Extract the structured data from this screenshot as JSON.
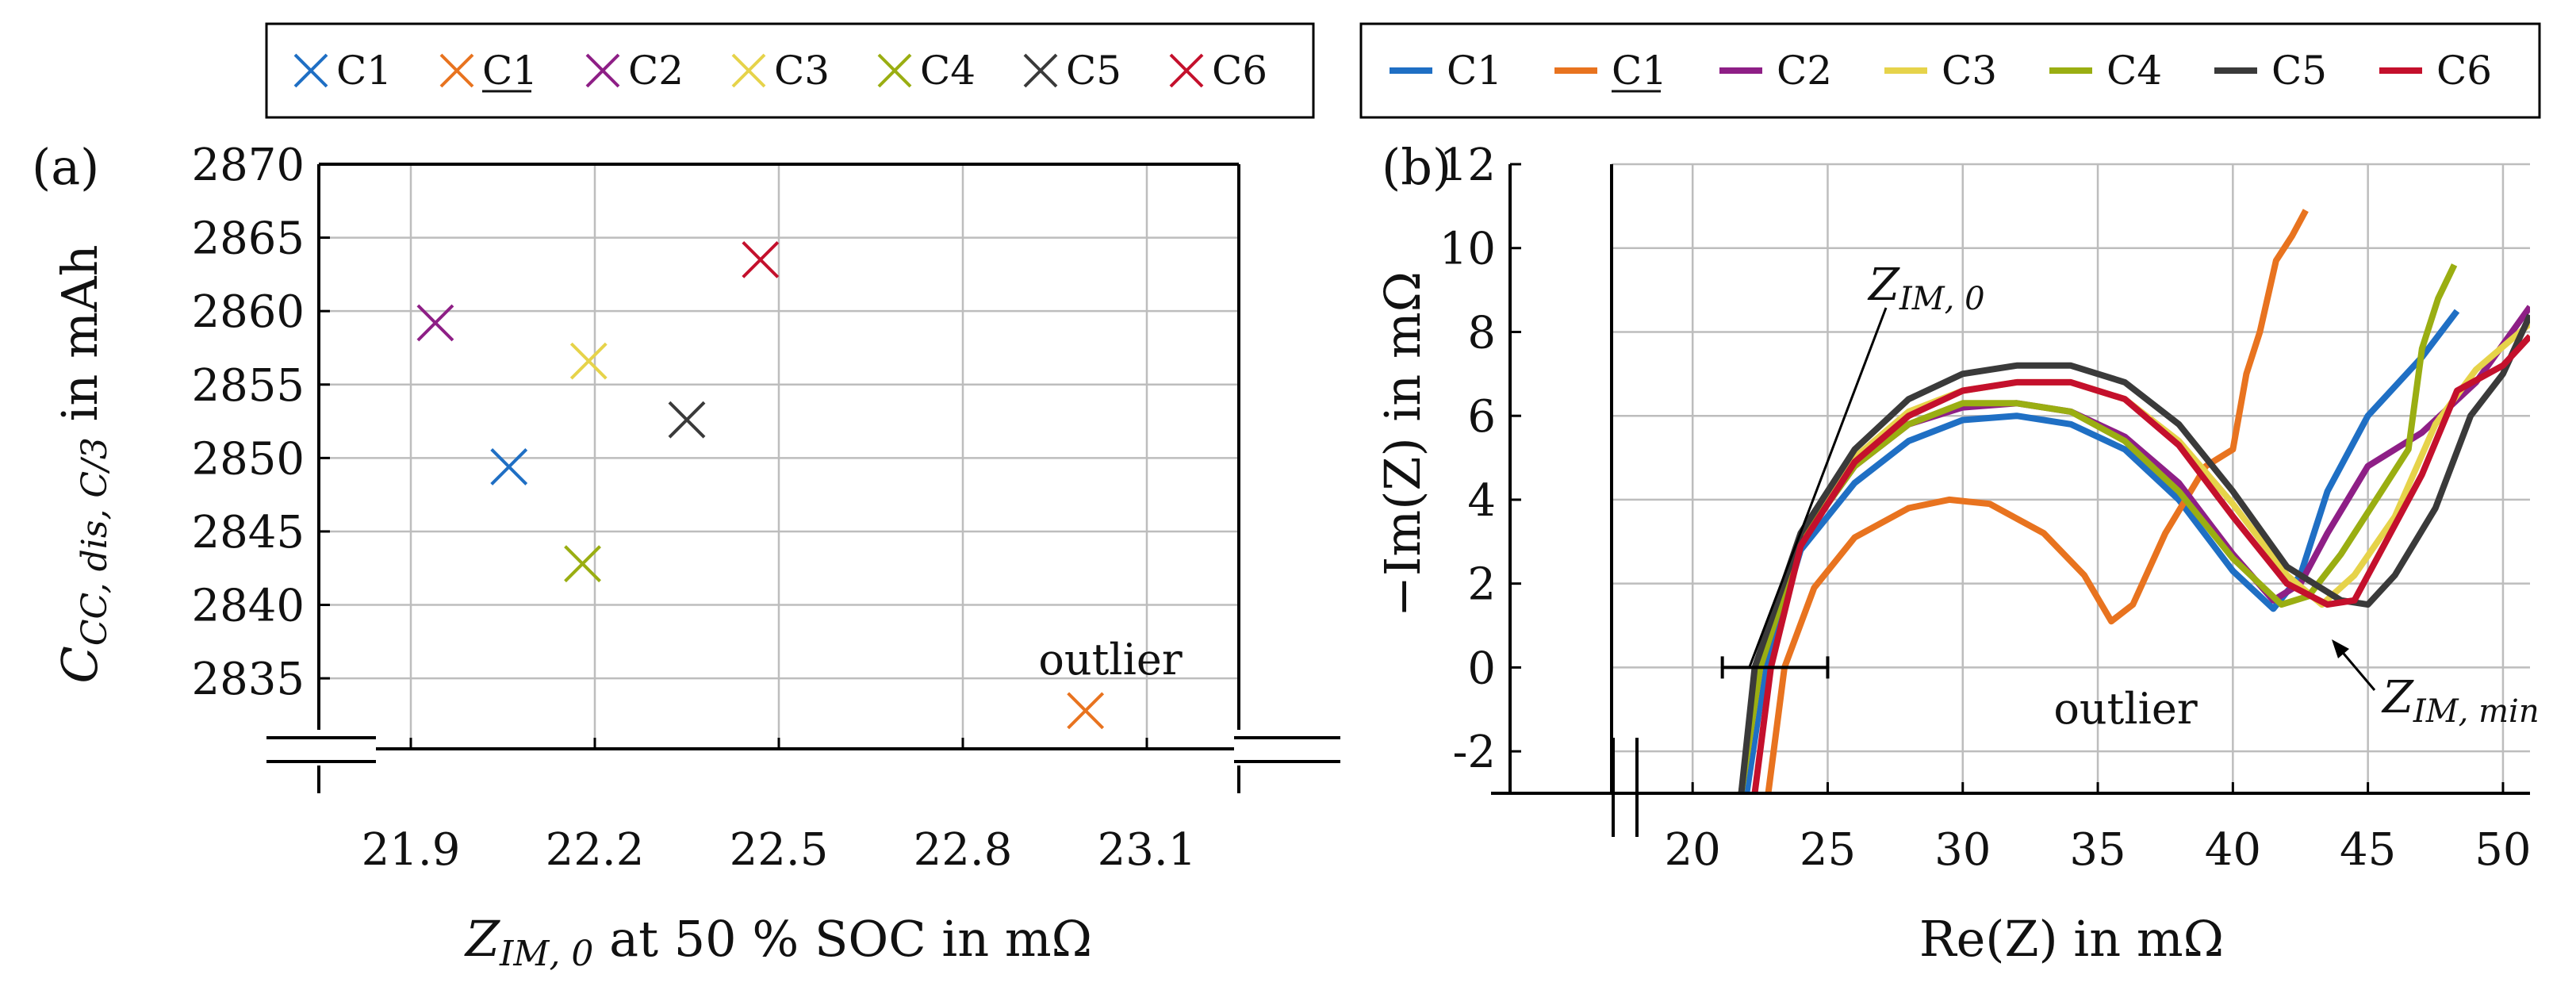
{
  "colors": {
    "C1": "#1f6fc4",
    "C1u": "#e8731f",
    "C2": "#8e1f86",
    "C3": "#e6d34a",
    "C4": "#9aae12",
    "C5": "#3a3a3a",
    "C6": "#c4102c",
    "axis": "#000000",
    "grid": "#bdbdbd"
  },
  "chart_data": [
    {
      "type": "scatter",
      "panel_label": "(a)",
      "legend": [
        "C1",
        "C1",
        "C2",
        "C3",
        "C4",
        "C5",
        "C6"
      ],
      "legend_underlined": [
        false,
        true,
        false,
        false,
        false,
        false,
        false
      ],
      "xlabel_main": "Z",
      "xlabel_sub": "IM, 0",
      "xlabel_rest": " at 50 % SOC in mΩ",
      "ylabel_main": "C",
      "ylabel_sub": "CC, dis, C/3",
      "ylabel_rest": " in mAh",
      "xticks": [
        21.9,
        22.2,
        22.5,
        22.8,
        23.1
      ],
      "xtick_labels": [
        "21.9",
        "22.2",
        "22.5",
        "22.8",
        "23.1"
      ],
      "yticks": [
        2835,
        2840,
        2845,
        2850,
        2855,
        2860,
        2865,
        2870
      ],
      "ytick_labels": [
        "2835",
        "2840",
        "2845",
        "2850",
        "2855",
        "2860",
        "2865",
        "2870"
      ],
      "xlim": [
        21.75,
        23.25
      ],
      "ylim": [
        2830.2,
        2870
      ],
      "points": [
        {
          "name": "C1",
          "x": 22.06,
          "y": 2849.4
        },
        {
          "name": "C1 (underlined)",
          "x": 23.0,
          "y": 2832.8
        },
        {
          "name": "C2",
          "x": 21.94,
          "y": 2859.2
        },
        {
          "name": "C3",
          "x": 22.19,
          "y": 2856.6
        },
        {
          "name": "C4",
          "x": 22.18,
          "y": 2842.8
        },
        {
          "name": "C5",
          "x": 22.35,
          "y": 2852.6
        },
        {
          "name": "C6",
          "x": 22.47,
          "y": 2863.5
        }
      ],
      "annotation": "outlier"
    },
    {
      "type": "line",
      "panel_label": "(b)",
      "legend": [
        "C1",
        "C1",
        "C2",
        "C3",
        "C4",
        "C5",
        "C6"
      ],
      "legend_underlined": [
        false,
        true,
        false,
        false,
        false,
        false,
        false
      ],
      "xlabel": "Re(Z) in mΩ",
      "ylabel": "−Im(Z) in mΩ",
      "xticks": [
        20,
        25,
        30,
        35,
        40,
        45,
        50
      ],
      "xtick_labels": [
        "20",
        "25",
        "30",
        "35",
        "40",
        "45",
        "50"
      ],
      "yticks": [
        -2,
        0,
        2,
        4,
        6,
        8,
        10,
        12
      ],
      "ytick_labels": [
        "-2",
        "0",
        "2",
        "4",
        "6",
        "8",
        "10",
        "12"
      ],
      "xlim": [
        17,
        51
      ],
      "ylim": [
        -3,
        12
      ],
      "series": [
        {
          "name": "C1",
          "x": [
            22.0,
            22.7,
            24.0,
            26.0,
            28.0,
            30.0,
            32.0,
            34.0,
            36.0,
            38.0,
            40.0,
            41.5,
            42.5,
            43.5,
            45.0,
            47.0,
            48.3
          ],
          "y": [
            -3.0,
            0,
            2.8,
            4.4,
            5.4,
            5.9,
            6.0,
            5.8,
            5.2,
            4.0,
            2.3,
            1.4,
            2.2,
            4.2,
            6.0,
            7.4,
            8.5
          ]
        },
        {
          "name": "C1 (underlined)",
          "x": [
            22.8,
            23.4,
            24.5,
            26.0,
            28.0,
            29.5,
            31.0,
            33.0,
            34.5,
            35.5,
            36.3,
            37.5,
            39.0,
            40.0,
            40.5,
            41.0,
            41.6,
            42.2,
            42.7
          ],
          "y": [
            -3.0,
            0,
            1.9,
            3.1,
            3.8,
            4.0,
            3.9,
            3.2,
            2.2,
            1.1,
            1.5,
            3.2,
            4.8,
            5.2,
            7.0,
            8.0,
            9.7,
            10.3,
            10.9
          ]
        },
        {
          "name": "C2",
          "x": [
            21.8,
            22.5,
            24.0,
            26.0,
            28.0,
            30.0,
            32.0,
            34.0,
            36.0,
            38.0,
            40.0,
            41.5,
            42.5,
            43.5,
            45.0,
            47.0,
            49.0,
            51.0
          ],
          "y": [
            -3.0,
            0,
            3.0,
            4.8,
            5.8,
            6.2,
            6.3,
            6.1,
            5.5,
            4.4,
            2.7,
            1.6,
            2.0,
            3.2,
            4.8,
            5.6,
            6.8,
            8.6
          ]
        },
        {
          "name": "C3",
          "x": [
            21.8,
            22.5,
            24.0,
            26.0,
            28.0,
            30.0,
            32.0,
            34.0,
            36.0,
            38.0,
            40.0,
            42.0,
            43.3,
            44.5,
            46.0,
            47.5,
            49.0,
            51.0
          ],
          "y": [
            -3.0,
            0,
            3.1,
            5.0,
            6.1,
            6.6,
            6.8,
            6.8,
            6.4,
            5.4,
            3.9,
            2.2,
            1.5,
            2.2,
            3.6,
            5.8,
            7.1,
            8.2
          ]
        },
        {
          "name": "C4",
          "x": [
            21.8,
            22.5,
            24.0,
            26.0,
            28.0,
            30.0,
            32.0,
            34.0,
            36.0,
            38.0,
            40.0,
            41.8,
            42.8,
            44.0,
            45.5,
            46.5,
            47.0,
            47.6,
            48.2
          ],
          "y": [
            -3.0,
            0,
            3.0,
            4.8,
            5.8,
            6.3,
            6.3,
            6.1,
            5.4,
            4.2,
            2.6,
            1.5,
            1.7,
            2.7,
            4.2,
            5.2,
            7.6,
            8.8,
            9.6
          ]
        },
        {
          "name": "C5",
          "x": [
            21.8,
            22.3,
            24.0,
            26.0,
            28.0,
            30.0,
            32.0,
            34.0,
            36.0,
            38.0,
            40.0,
            42.0,
            44.0,
            45.0,
            46.0,
            47.5,
            48.8,
            50.0,
            51.0
          ],
          "y": [
            -3.0,
            0,
            3.2,
            5.2,
            6.4,
            7.0,
            7.2,
            7.2,
            6.8,
            5.8,
            4.2,
            2.4,
            1.6,
            1.5,
            2.2,
            3.8,
            6.0,
            7.0,
            8.4
          ]
        },
        {
          "name": "C6",
          "x": [
            22.3,
            22.9,
            24.0,
            26.0,
            28.0,
            30.0,
            32.0,
            34.0,
            36.0,
            38.0,
            40.0,
            42.0,
            43.5,
            44.5,
            45.5,
            47.0,
            48.3,
            50.0,
            51.0
          ],
          "y": [
            -3.0,
            0,
            2.9,
            4.9,
            6.0,
            6.6,
            6.8,
            6.8,
            6.4,
            5.3,
            3.6,
            2.0,
            1.5,
            1.6,
            2.8,
            4.6,
            6.6,
            7.2,
            7.9
          ]
        }
      ],
      "annotations": {
        "z0": "Z",
        "z0_sub": "IM, 0",
        "zmin": "Z",
        "zmin_sub": "IM, min",
        "outlier": "outlier"
      }
    }
  ]
}
